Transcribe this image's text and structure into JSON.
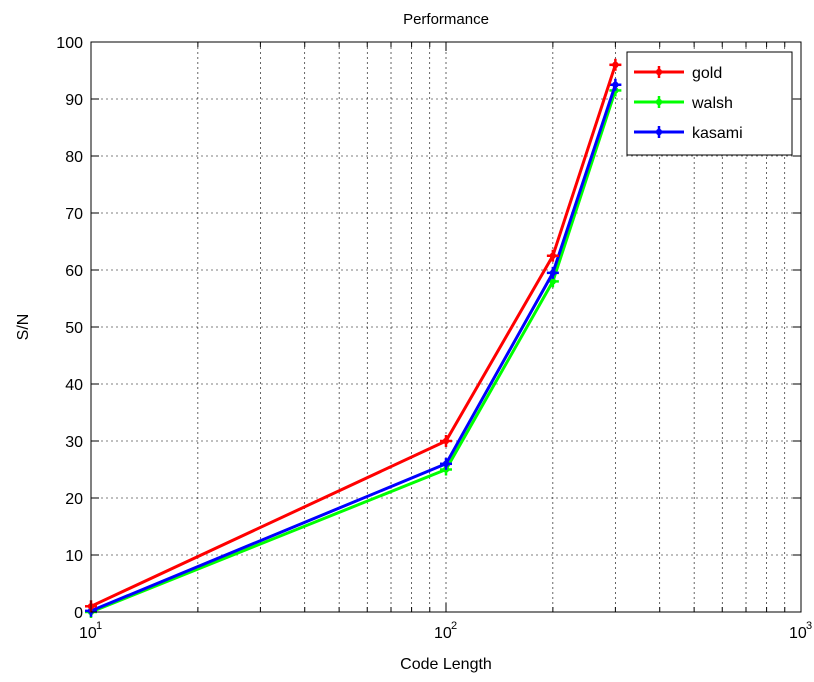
{
  "chart_data": {
    "type": "line",
    "title": "Performance",
    "xlabel": "Code Length",
    "ylabel": "S/N",
    "xscale": "log",
    "xlim": [
      10,
      1000
    ],
    "ylim": [
      0,
      100
    ],
    "x_ticks": [
      10,
      100,
      1000
    ],
    "x_tick_labels": [
      {
        "base": "10",
        "exp": "1"
      },
      {
        "base": "10",
        "exp": "2"
      },
      {
        "base": "10",
        "exp": "3"
      }
    ],
    "y_ticks": [
      0,
      10,
      20,
      30,
      40,
      50,
      60,
      70,
      80,
      90,
      100
    ],
    "y_tick_labels": [
      "0",
      "10",
      "20",
      "30",
      "40",
      "50",
      "60",
      "70",
      "80",
      "90",
      "100"
    ],
    "grid": true,
    "legend_position": "top-right",
    "x": [
      10,
      100,
      200,
      300
    ],
    "series": [
      {
        "name": "gold",
        "color": "#ff0000",
        "values": [
          1,
          30,
          62.5,
          96
        ]
      },
      {
        "name": "walsh",
        "color": "#00ff00",
        "values": [
          0,
          25,
          58,
          91.5
        ]
      },
      {
        "name": "kasami",
        "color": "#0000ff",
        "values": [
          0.2,
          26,
          59.5,
          92.5
        ]
      }
    ]
  }
}
